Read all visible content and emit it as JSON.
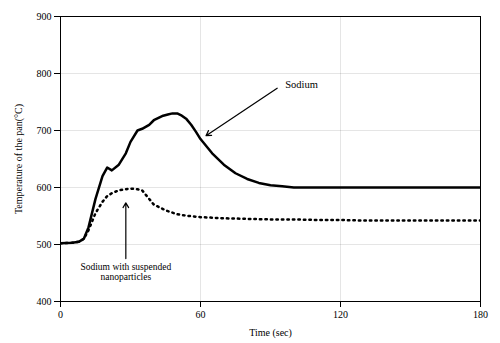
{
  "chart_data": {
    "type": "line",
    "xlabel": "Time (sec)",
    "ylabel": "Temperature of the pan(°C)",
    "xlim": [
      0,
      180
    ],
    "ylim": [
      400,
      900
    ],
    "xticks": [
      0,
      60,
      120,
      180
    ],
    "yticks": [
      400,
      500,
      600,
      700,
      800,
      900
    ],
    "grid": true,
    "series": [
      {
        "color": "#000000",
        "line_style": "solid",
        "x": [
          0,
          5,
          8,
          10,
          12,
          15,
          18,
          20,
          22,
          25,
          28,
          30,
          33,
          35,
          38,
          40,
          42,
          44,
          46,
          48,
          50,
          52,
          54,
          56,
          58,
          60,
          65,
          70,
          75,
          80,
          85,
          90,
          95,
          100,
          110,
          120,
          130,
          140,
          150,
          160,
          170,
          180
        ],
        "values": [
          502,
          503,
          505,
          510,
          530,
          580,
          620,
          635,
          630,
          640,
          660,
          680,
          700,
          703,
          710,
          718,
          722,
          726,
          728,
          730,
          730,
          726,
          720,
          710,
          698,
          685,
          660,
          640,
          625,
          615,
          608,
          604,
          602,
          600,
          600,
          600,
          600,
          600,
          600,
          600,
          600,
          600
        ]
      },
      {
        "color": "#000000",
        "line_style": "dotted",
        "x": [
          0,
          5,
          8,
          10,
          12,
          15,
          18,
          20,
          22,
          25,
          28,
          30,
          33,
          35,
          38,
          40,
          45,
          50,
          55,
          60,
          65,
          70,
          80,
          90,
          100,
          110,
          120,
          130,
          140,
          150,
          160,
          170,
          180
        ],
        "values": [
          502,
          503,
          505,
          510,
          525,
          555,
          575,
          585,
          590,
          595,
          597,
          598,
          597,
          595,
          580,
          570,
          560,
          553,
          550,
          548,
          547,
          546,
          545,
          544,
          544,
          543,
          543,
          542,
          542,
          542,
          542,
          542,
          542
        ]
      }
    ],
    "annotations": [
      {
        "text": "Sodium",
        "x": 62,
        "y": 690,
        "text_x": 95,
        "text_y": 780
      },
      {
        "text": "Sodium with suspended\nnanoparticles",
        "x": 28,
        "y": 575,
        "text_x": 28,
        "text_y": 470
      }
    ]
  }
}
